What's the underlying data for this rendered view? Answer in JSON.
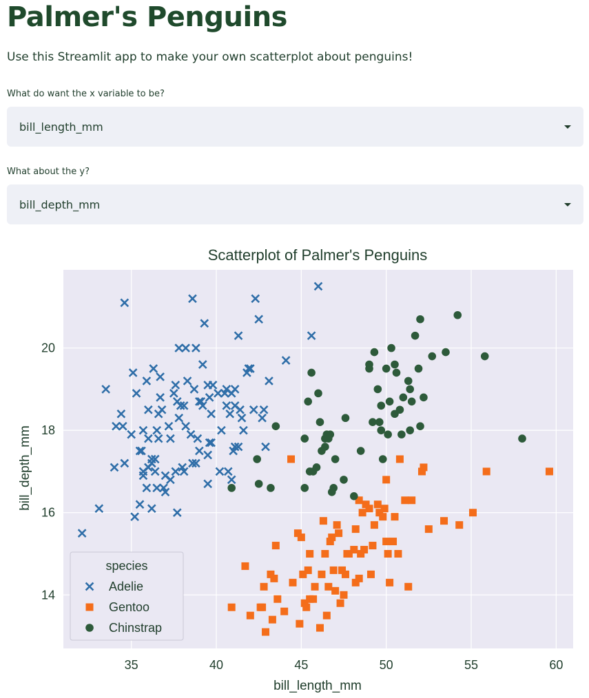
{
  "header": {
    "title": "Palmer's Penguins",
    "subtitle": "Use this Streamlit app to make your own scatterplot about penguins!"
  },
  "x_select": {
    "label": "What do want the x variable to be?",
    "value": "bill_length_mm"
  },
  "y_select": {
    "label": "What about the y?",
    "value": "bill_depth_mm"
  },
  "colors": {
    "Adelie": "#2f6ea8",
    "Gentoo": "#f46d1a",
    "Chinstrap": "#2d5a3a",
    "plot_bg": "#eae8f3"
  },
  "chart_data": {
    "type": "scatter",
    "title": "Scatterplot of Palmer's Penguins",
    "xlabel": "bill_length_mm",
    "ylabel": "bill_depth_mm",
    "xlim": [
      31,
      61
    ],
    "ylim": [
      12.7,
      21.9
    ],
    "xticks": [
      35,
      40,
      45,
      50,
      55,
      60
    ],
    "yticks": [
      14,
      16,
      18,
      20
    ],
    "grid": true,
    "legend": {
      "title": "species",
      "placement": "bottom-left"
    },
    "series": [
      {
        "name": "Adelie",
        "marker": "x",
        "points": [
          [
            32.1,
            15.5
          ],
          [
            33.1,
            16.1
          ],
          [
            33.5,
            19.0
          ],
          [
            34.0,
            17.1
          ],
          [
            34.1,
            18.1
          ],
          [
            34.4,
            18.4
          ],
          [
            34.5,
            18.1
          ],
          [
            34.6,
            21.1
          ],
          [
            34.6,
            17.2
          ],
          [
            35.0,
            17.9
          ],
          [
            35.1,
            19.4
          ],
          [
            35.2,
            15.9
          ],
          [
            35.3,
            18.9
          ],
          [
            35.5,
            16.2
          ],
          [
            35.5,
            17.5
          ],
          [
            35.6,
            17.5
          ],
          [
            35.7,
            16.9
          ],
          [
            35.7,
            18.0
          ],
          [
            35.9,
            19.2
          ],
          [
            35.9,
            16.6
          ],
          [
            36.0,
            17.1
          ],
          [
            36.0,
            18.5
          ],
          [
            36.0,
            17.8
          ],
          [
            36.2,
            16.1
          ],
          [
            36.2,
            17.2
          ],
          [
            36.3,
            19.5
          ],
          [
            36.4,
            17.0
          ],
          [
            36.5,
            16.6
          ],
          [
            36.5,
            18.0
          ],
          [
            36.6,
            17.8
          ],
          [
            36.6,
            18.4
          ],
          [
            36.7,
            19.3
          ],
          [
            36.7,
            18.8
          ],
          [
            36.8,
            18.5
          ],
          [
            36.9,
            16.6
          ],
          [
            37.0,
            16.9
          ],
          [
            37.2,
            18.1
          ],
          [
            37.3,
            17.8
          ],
          [
            37.3,
            16.8
          ],
          [
            37.5,
            18.9
          ],
          [
            37.6,
            19.1
          ],
          [
            37.6,
            17.0
          ],
          [
            37.7,
            18.7
          ],
          [
            37.7,
            16.0
          ],
          [
            37.8,
            18.3
          ],
          [
            37.8,
            20.0
          ],
          [
            37.9,
            18.6
          ],
          [
            38.1,
            18.6
          ],
          [
            38.1,
            17.0
          ],
          [
            38.2,
            18.1
          ],
          [
            38.2,
            20.0
          ],
          [
            38.3,
            19.2
          ],
          [
            38.5,
            17.9
          ],
          [
            38.6,
            21.2
          ],
          [
            38.6,
            17.2
          ],
          [
            38.7,
            19.0
          ],
          [
            38.8,
            17.2
          ],
          [
            38.9,
            17.8
          ],
          [
            39.0,
            17.5
          ],
          [
            39.0,
            18.7
          ],
          [
            39.1,
            18.7
          ],
          [
            39.2,
            19.6
          ],
          [
            39.2,
            18.6
          ],
          [
            39.3,
            20.6
          ],
          [
            39.5,
            17.4
          ],
          [
            39.5,
            16.7
          ],
          [
            39.6,
            17.7
          ],
          [
            39.6,
            18.8
          ],
          [
            39.7,
            18.4
          ],
          [
            39.7,
            17.7
          ],
          [
            39.8,
            19.1
          ],
          [
            40.1,
            18.9
          ],
          [
            40.2,
            17.0
          ],
          [
            40.3,
            18.0
          ],
          [
            40.5,
            18.9
          ],
          [
            40.6,
            18.6
          ],
          [
            40.6,
            19.0
          ],
          [
            40.7,
            17.0
          ],
          [
            40.8,
            18.4
          ],
          [
            40.9,
            16.8
          ],
          [
            41.0,
            17.5
          ],
          [
            41.1,
            17.6
          ],
          [
            41.1,
            18.6
          ],
          [
            41.1,
            19.0
          ],
          [
            41.3,
            20.3
          ],
          [
            41.4,
            18.5
          ],
          [
            41.5,
            18.3
          ],
          [
            41.6,
            18.0
          ],
          [
            41.8,
            19.4
          ],
          [
            41.9,
            19.5
          ],
          [
            42.0,
            19.5
          ],
          [
            42.2,
            18.5
          ],
          [
            42.3,
            21.2
          ],
          [
            42.5,
            20.7
          ],
          [
            42.7,
            18.3
          ],
          [
            42.8,
            18.5
          ],
          [
            42.9,
            17.6
          ],
          [
            43.1,
            19.2
          ],
          [
            44.1,
            19.7
          ],
          [
            45.6,
            20.3
          ],
          [
            46.0,
            21.5
          ],
          [
            38.0,
            17.1
          ],
          [
            36.2,
            17.3
          ],
          [
            38.8,
            20.0
          ],
          [
            37.0,
            16.5
          ],
          [
            39.5,
            19.1
          ],
          [
            41.3,
            17.6
          ],
          [
            36.4,
            17.3
          ],
          [
            35.7,
            17.0
          ],
          [
            40.9,
            18.9
          ]
        ]
      },
      {
        "name": "Gentoo",
        "marker": "s",
        "points": [
          [
            40.9,
            13.7
          ],
          [
            42.0,
            13.5
          ],
          [
            42.6,
            13.7
          ],
          [
            42.7,
            13.7
          ],
          [
            42.8,
            14.2
          ],
          [
            42.9,
            13.1
          ],
          [
            43.2,
            14.5
          ],
          [
            43.3,
            13.4
          ],
          [
            43.4,
            14.4
          ],
          [
            43.5,
            15.2
          ],
          [
            43.6,
            13.9
          ],
          [
            44.0,
            13.6
          ],
          [
            44.4,
            17.3
          ],
          [
            44.5,
            14.3
          ],
          [
            44.9,
            13.3
          ],
          [
            45.1,
            14.5
          ],
          [
            45.2,
            13.8
          ],
          [
            45.3,
            13.7
          ],
          [
            45.4,
            14.6
          ],
          [
            45.5,
            13.9
          ],
          [
            45.5,
            15.0
          ],
          [
            45.7,
            13.9
          ],
          [
            45.8,
            14.2
          ],
          [
            46.1,
            13.2
          ],
          [
            46.2,
            14.5
          ],
          [
            46.4,
            15.0
          ],
          [
            46.5,
            13.5
          ],
          [
            46.6,
            14.2
          ],
          [
            46.8,
            15.4
          ],
          [
            47.0,
            14.1
          ],
          [
            47.2,
            15.5
          ],
          [
            47.3,
            13.8
          ],
          [
            47.5,
            14.0
          ],
          [
            47.6,
            14.5
          ],
          [
            47.7,
            15.0
          ],
          [
            47.8,
            15.0
          ],
          [
            48.1,
            15.1
          ],
          [
            48.2,
            14.3
          ],
          [
            48.4,
            14.4
          ],
          [
            48.5,
            15.0
          ],
          [
            48.7,
            15.1
          ],
          [
            48.8,
            16.2
          ],
          [
            49.0,
            16.1
          ],
          [
            49.1,
            14.5
          ],
          [
            49.3,
            15.7
          ],
          [
            49.5,
            16.2
          ],
          [
            49.6,
            16.0
          ],
          [
            49.8,
            15.9
          ],
          [
            50.0,
            15.3
          ],
          [
            50.1,
            15.0
          ],
          [
            50.2,
            14.3
          ],
          [
            50.4,
            15.3
          ],
          [
            50.5,
            15.9
          ],
          [
            50.7,
            15.0
          ],
          [
            51.1,
            16.3
          ],
          [
            51.3,
            14.2
          ],
          [
            51.5,
            16.3
          ],
          [
            52.1,
            17.0
          ],
          [
            52.2,
            17.1
          ],
          [
            52.5,
            15.6
          ],
          [
            53.4,
            15.8
          ],
          [
            54.3,
            15.7
          ],
          [
            55.1,
            16.0
          ],
          [
            55.9,
            17.0
          ],
          [
            59.6,
            17.0
          ],
          [
            41.7,
            14.7
          ],
          [
            47.4,
            14.6
          ],
          [
            48.6,
            16.0
          ],
          [
            50.8,
            17.3
          ],
          [
            46.9,
            14.6
          ],
          [
            45.0,
            15.4
          ],
          [
            49.9,
            16.1
          ],
          [
            48.4,
            16.3
          ],
          [
            46.3,
            15.8
          ],
          [
            50.0,
            16.8
          ],
          [
            44.8,
            15.5
          ],
          [
            47.1,
            15.7
          ],
          [
            46.7,
            15.3
          ],
          [
            48.2,
            15.6
          ],
          [
            49.2,
            15.2
          ]
        ]
      },
      {
        "name": "Chinstrap",
        "marker": "o",
        "points": [
          [
            40.9,
            16.6
          ],
          [
            42.4,
            17.3
          ],
          [
            42.5,
            16.7
          ],
          [
            43.2,
            16.6
          ],
          [
            43.5,
            18.1
          ],
          [
            45.2,
            16.6
          ],
          [
            45.2,
            17.8
          ],
          [
            45.4,
            18.7
          ],
          [
            45.5,
            17.0
          ],
          [
            45.6,
            19.4
          ],
          [
            45.7,
            17.0
          ],
          [
            45.9,
            17.1
          ],
          [
            46.0,
            18.9
          ],
          [
            46.1,
            18.2
          ],
          [
            46.4,
            17.8
          ],
          [
            46.5,
            17.9
          ],
          [
            46.6,
            17.8
          ],
          [
            46.7,
            17.9
          ],
          [
            46.8,
            16.5
          ],
          [
            46.9,
            16.6
          ],
          [
            47.0,
            17.3
          ],
          [
            47.5,
            16.8
          ],
          [
            47.6,
            18.3
          ],
          [
            48.1,
            16.4
          ],
          [
            48.5,
            17.5
          ],
          [
            49.0,
            19.5
          ],
          [
            49.2,
            18.2
          ],
          [
            49.3,
            19.9
          ],
          [
            49.5,
            19.0
          ],
          [
            49.6,
            18.2
          ],
          [
            49.7,
            18.6
          ],
          [
            49.8,
            17.3
          ],
          [
            50.0,
            19.5
          ],
          [
            50.1,
            17.9
          ],
          [
            50.2,
            18.7
          ],
          [
            50.3,
            20.0
          ],
          [
            50.5,
            18.4
          ],
          [
            50.6,
            19.4
          ],
          [
            50.8,
            18.5
          ],
          [
            50.9,
            17.9
          ],
          [
            51.0,
            18.8
          ],
          [
            51.3,
            19.2
          ],
          [
            51.4,
            19.0
          ],
          [
            51.5,
            18.7
          ],
          [
            51.7,
            20.3
          ],
          [
            51.9,
            19.5
          ],
          [
            52.0,
            18.1
          ],
          [
            52.0,
            20.7
          ],
          [
            52.2,
            18.8
          ],
          [
            52.7,
            19.8
          ],
          [
            53.5,
            19.9
          ],
          [
            54.2,
            20.8
          ],
          [
            55.8,
            19.8
          ],
          [
            58.0,
            17.8
          ],
          [
            46.2,
            17.5
          ],
          [
            46.4,
            17.6
          ],
          [
            49.0,
            19.6
          ],
          [
            50.5,
            19.6
          ],
          [
            51.4,
            18.0
          ],
          [
            49.7,
            18.0
          ]
        ]
      }
    ]
  }
}
